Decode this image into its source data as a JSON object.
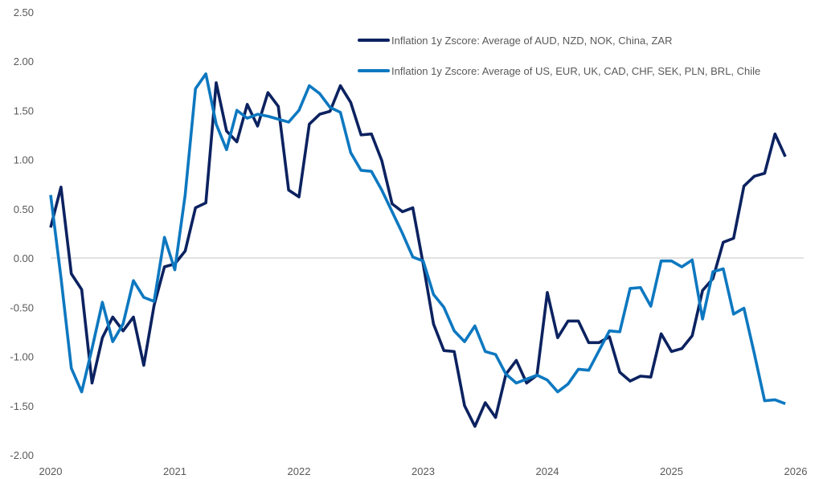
{
  "chart_data": {
    "type": "line",
    "title": "",
    "xlabel": "",
    "ylabel": "",
    "x_start": "2020-01",
    "frequency": "monthly",
    "x_ticks": [
      "2020",
      "2021",
      "2022",
      "2023",
      "2024",
      "2025",
      "2026"
    ],
    "y_ticks": [
      "2.50",
      "2.00",
      "1.50",
      "1.00",
      "0.50",
      "0.00",
      "-0.50",
      "-1.00",
      "-1.50",
      "-2.00"
    ],
    "ylim": [
      -2.0,
      2.5
    ],
    "xlim": [
      2020,
      2026
    ],
    "grid": false,
    "zero_line": true,
    "legend_position": "top-right",
    "series": [
      {
        "name": "Inflation 1y Zscore: Average of AUD, NZD, NOK, China, ZAR",
        "color": "#0c2260",
        "values": [
          0.31,
          0.72,
          -0.16,
          -0.32,
          -1.27,
          -0.81,
          -0.6,
          -0.74,
          -0.6,
          -1.09,
          -0.48,
          -0.09,
          -0.06,
          0.07,
          0.51,
          0.56,
          1.78,
          1.29,
          1.18,
          1.56,
          1.34,
          1.68,
          1.54,
          0.69,
          0.62,
          1.36,
          1.46,
          1.49,
          1.75,
          1.58,
          1.25,
          1.26,
          0.99,
          0.55,
          0.47,
          0.51,
          -0.06,
          -0.67,
          -0.94,
          -0.95,
          -1.5,
          -1.71,
          -1.47,
          -1.62,
          -1.18,
          -1.04,
          -1.27,
          -1.19,
          -0.35,
          -0.81,
          -0.64,
          -0.64,
          -0.86,
          -0.86,
          -0.8,
          -1.16,
          -1.25,
          -1.2,
          -1.21,
          -0.77,
          -0.95,
          -0.92,
          -0.79,
          -0.33,
          -0.21,
          0.16,
          0.2,
          0.73,
          0.83,
          0.86,
          1.26,
          1.03
        ]
      },
      {
        "name": "Inflation 1y Zscore: Average of US, EUR, UK, CAD, CHF, SEK, PLN, BRL, Chile",
        "color": "#0d78c0",
        "values": [
          0.64,
          -0.2,
          -1.12,
          -1.36,
          -0.92,
          -0.45,
          -0.85,
          -0.67,
          -0.23,
          -0.4,
          -0.44,
          0.21,
          -0.12,
          0.64,
          1.72,
          1.87,
          1.36,
          1.1,
          1.5,
          1.42,
          1.46,
          1.44,
          1.41,
          1.38,
          1.5,
          1.75,
          1.67,
          1.53,
          1.48,
          1.07,
          0.89,
          0.88,
          0.69,
          0.47,
          0.25,
          0.01,
          -0.03,
          -0.37,
          -0.5,
          -0.74,
          -0.85,
          -0.69,
          -0.95,
          -0.98,
          -1.18,
          -1.27,
          -1.23,
          -1.19,
          -1.24,
          -1.36,
          -1.28,
          -1.13,
          -1.14,
          -0.94,
          -0.74,
          -0.75,
          -0.31,
          -0.3,
          -0.49,
          -0.03,
          -0.03,
          -0.09,
          -0.02,
          -0.62,
          -0.14,
          -0.11,
          -0.57,
          -0.51,
          -0.97,
          -1.45,
          -1.44,
          -1.48
        ]
      }
    ]
  }
}
